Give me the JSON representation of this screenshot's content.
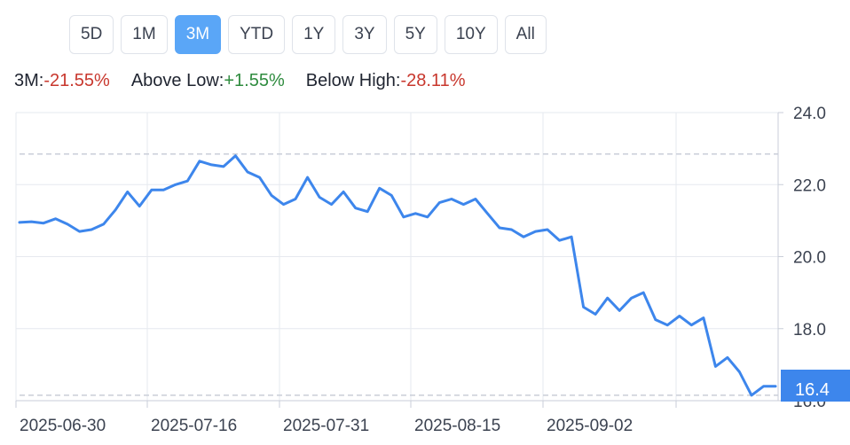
{
  "ranges": [
    {
      "label": "5D",
      "active": false
    },
    {
      "label": "1M",
      "active": false
    },
    {
      "label": "3M",
      "active": true
    },
    {
      "label": "YTD",
      "active": false
    },
    {
      "label": "1Y",
      "active": false
    },
    {
      "label": "3Y",
      "active": false
    },
    {
      "label": "5Y",
      "active": false
    },
    {
      "label": "10Y",
      "active": false
    },
    {
      "label": "All",
      "active": false
    }
  ],
  "stats": {
    "period_label": "3M:",
    "period_value": "-21.55%",
    "above_low_label": "Above Low:",
    "above_low_value": "+1.55%",
    "below_high_label": "Below High:",
    "below_high_value": "-28.11%"
  },
  "colors": {
    "line": "#3d86ec",
    "accent": "#5aa6f7",
    "negative": "#c8372d",
    "positive": "#2e8b3e"
  },
  "chart_data": {
    "type": "line",
    "ylim": [
      16.0,
      24.0
    ],
    "yticks": [
      "24.0",
      "22.0",
      "20.0",
      "18.0",
      "16.0"
    ],
    "xticks": [
      "2025-06-30",
      "2025-07-16",
      "2025-07-31",
      "2025-08-15",
      "2025-09-02"
    ],
    "high_reference": 22.85,
    "low_reference": 16.15,
    "current_value_label": "16.4",
    "x": [
      "2025-06-25",
      "2025-06-26",
      "2025-06-27",
      "2025-06-30",
      "2025-07-01",
      "2025-07-02",
      "2025-07-03",
      "2025-07-07",
      "2025-07-08",
      "2025-07-09",
      "2025-07-10",
      "2025-07-11",
      "2025-07-14",
      "2025-07-15",
      "2025-07-16",
      "2025-07-17",
      "2025-07-18",
      "2025-07-21",
      "2025-07-22",
      "2025-07-23",
      "2025-07-24",
      "2025-07-25",
      "2025-07-28",
      "2025-07-29",
      "2025-07-30",
      "2025-07-31",
      "2025-08-01",
      "2025-08-04",
      "2025-08-05",
      "2025-08-06",
      "2025-08-07",
      "2025-08-08",
      "2025-08-11",
      "2025-08-12",
      "2025-08-13",
      "2025-08-14",
      "2025-08-15",
      "2025-08-18",
      "2025-08-19",
      "2025-08-20",
      "2025-08-21",
      "2025-08-22",
      "2025-08-25",
      "2025-08-26",
      "2025-08-27",
      "2025-08-28",
      "2025-08-29",
      "2025-09-02",
      "2025-09-03",
      "2025-09-04",
      "2025-09-05",
      "2025-09-08",
      "2025-09-09",
      "2025-09-10",
      "2025-09-11",
      "2025-09-12",
      "2025-09-15",
      "2025-09-16",
      "2025-09-17",
      "2025-09-18",
      "2025-09-19",
      "2025-09-22",
      "2025-09-23",
      "2025-09-24"
    ],
    "series": [
      {
        "values": [
          20.95,
          20.97,
          20.93,
          21.05,
          20.9,
          20.7,
          20.75,
          20.9,
          21.3,
          21.8,
          21.4,
          21.85,
          21.85,
          22.0,
          22.1,
          22.65,
          22.55,
          22.5,
          22.8,
          22.35,
          22.2,
          21.7,
          21.45,
          21.6,
          22.2,
          21.65,
          21.45,
          21.8,
          21.35,
          21.25,
          21.9,
          21.7,
          21.1,
          21.2,
          21.1,
          21.5,
          21.6,
          21.45,
          21.6,
          21.2,
          20.8,
          20.75,
          20.55,
          20.7,
          20.75,
          20.45,
          20.55,
          18.6,
          18.4,
          18.85,
          18.5,
          18.85,
          19.0,
          18.25,
          18.1,
          18.35,
          18.1,
          18.3,
          16.95,
          17.2,
          16.8,
          16.15,
          16.4,
          16.4
        ]
      }
    ]
  }
}
